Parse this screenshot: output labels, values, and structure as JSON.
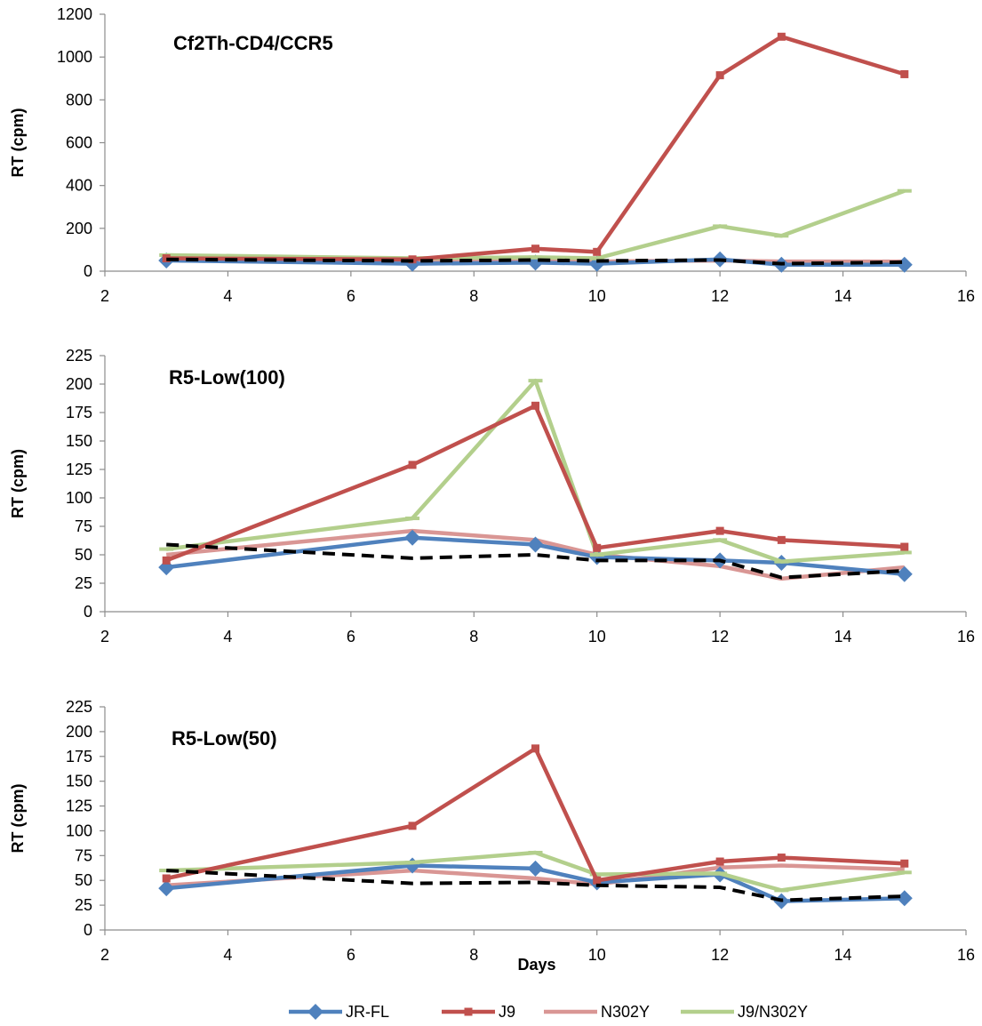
{
  "figure": {
    "shared_xlabel": "Days"
  },
  "chart_data": [
    {
      "type": "line",
      "title": "Cf2Th-CD4/CCR5",
      "xlabel": "",
      "ylabel": "RT (cpm)",
      "xlim": [
        2,
        16
      ],
      "ylim": [
        0,
        1200
      ],
      "xticks": [
        2,
        4,
        6,
        8,
        10,
        12,
        14,
        16
      ],
      "yticks": [
        0,
        200,
        400,
        600,
        800,
        1000,
        1200
      ],
      "grid": false,
      "legend": "bottom",
      "x": [
        3,
        7,
        9,
        10,
        12,
        13,
        15
      ],
      "series": [
        {
          "name": "JR-FL",
          "values": [
            50,
            35,
            40,
            35,
            55,
            30,
            30
          ]
        },
        {
          "name": "J9",
          "values": [
            60,
            55,
            105,
            90,
            915,
            1095,
            920
          ]
        },
        {
          "name": "N302Y",
          "values": [
            55,
            45,
            50,
            45,
            50,
            45,
            45
          ]
        },
        {
          "name": "J9/N302Y",
          "values": [
            75,
            60,
            65,
            60,
            210,
            165,
            375
          ]
        },
        {
          "name": "",
          "values": [
            55,
            48,
            52,
            48,
            52,
            35,
            42
          ]
        }
      ]
    },
    {
      "type": "line",
      "title": "R5-Low(100)",
      "xlabel": "",
      "ylabel": "RT (cpm)",
      "xlim": [
        2,
        16
      ],
      "ylim": [
        0,
        225
      ],
      "xticks": [
        2,
        4,
        6,
        8,
        10,
        12,
        14,
        16
      ],
      "yticks": [
        0,
        25,
        50,
        75,
        100,
        125,
        150,
        175,
        200,
        225
      ],
      "grid": false,
      "legend": "bottom",
      "x": [
        3,
        7,
        9,
        10,
        12,
        13,
        15
      ],
      "series": [
        {
          "name": "JR-FL",
          "values": [
            39,
            65,
            59,
            48,
            45,
            43,
            33
          ]
        },
        {
          "name": "J9",
          "values": [
            45,
            129,
            181,
            56,
            71,
            63,
            57
          ]
        },
        {
          "name": "N302Y",
          "values": [
            50,
            71,
            63,
            50,
            40,
            29,
            39
          ]
        },
        {
          "name": "J9/N302Y",
          "values": [
            55,
            82,
            203,
            50,
            63,
            44,
            52
          ]
        },
        {
          "name": "",
          "values": [
            59,
            47,
            50,
            45,
            45,
            30,
            36
          ]
        }
      ]
    },
    {
      "type": "line",
      "title": "R5-Low(50)",
      "xlabel": "",
      "ylabel": "RT (cpm)",
      "xlim": [
        2,
        16
      ],
      "ylim": [
        0,
        225
      ],
      "xticks": [
        2,
        4,
        6,
        8,
        10,
        12,
        14,
        16
      ],
      "yticks": [
        0,
        25,
        50,
        75,
        100,
        125,
        150,
        175,
        200,
        225
      ],
      "grid": false,
      "legend": "bottom",
      "x": [
        3,
        7,
        9,
        10,
        12,
        13,
        15
      ],
      "series": [
        {
          "name": "JR-FL",
          "values": [
            42,
            65,
            62,
            48,
            56,
            29,
            32
          ]
        },
        {
          "name": "J9",
          "values": [
            52,
            105,
            183,
            50,
            69,
            73,
            67
          ]
        },
        {
          "name": "N302Y",
          "values": [
            45,
            60,
            52,
            46,
            63,
            65,
            61
          ]
        },
        {
          "name": "J9/N302Y",
          "values": [
            60,
            68,
            78,
            56,
            57,
            40,
            58
          ]
        },
        {
          "name": "",
          "values": [
            60,
            47,
            48,
            45,
            43,
            30,
            34
          ]
        }
      ]
    }
  ],
  "styles": {
    "series_colors": [
      "#4f81bd",
      "#c0504d",
      "#d99694",
      "#b3cf8c",
      "#000000"
    ],
    "axis_color": "#8c8c8c"
  }
}
